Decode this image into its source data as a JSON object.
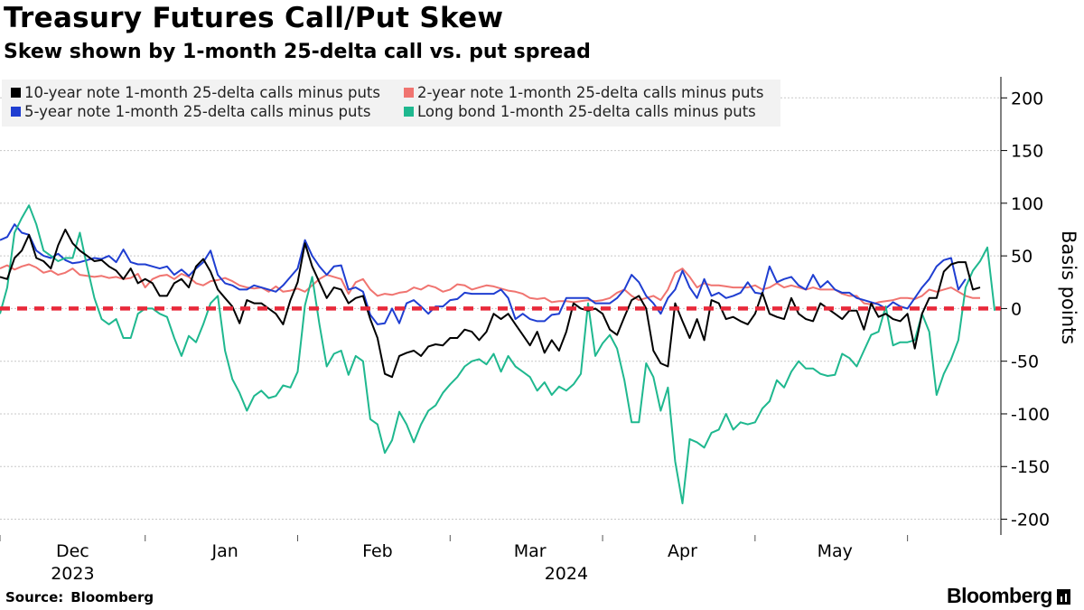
{
  "chart_data": {
    "type": "line",
    "title": "Treasury Futures Call/Put Skew",
    "subtitle": "Skew shown by 1-month 25-delta call vs. put spread",
    "ylabel": "Basis points",
    "ylim": [
      -215,
      220
    ],
    "yticks": [
      200,
      150,
      100,
      50,
      0,
      -50,
      -100,
      -150,
      -200
    ],
    "grid": true,
    "legend_position": "top-left",
    "zero_line_color": "#e8293a",
    "x_month_labels": [
      {
        "label": "Dec",
        "index": 10
      },
      {
        "label": "Jan",
        "index": 31
      },
      {
        "label": "Feb",
        "index": 52
      },
      {
        "label": "Mar",
        "index": 73
      },
      {
        "label": "Apr",
        "index": 94
      },
      {
        "label": "May",
        "index": 115
      }
    ],
    "x_year_labels": [
      {
        "label": "2023",
        "index": 10
      },
      {
        "label": "2024",
        "index": 78
      }
    ],
    "x_tick_indices": [
      0,
      20,
      41,
      62,
      83,
      104,
      125
    ],
    "series": [
      {
        "name": "2-year note 1-month 25-delta calls minus puts",
        "color": "#f07470",
        "values": [
          38,
          41,
          37,
          40,
          42,
          39,
          34,
          36,
          32,
          34,
          38,
          32,
          31,
          30,
          31,
          29,
          30,
          28,
          29,
          33,
          20,
          28,
          31,
          32,
          28,
          33,
          30,
          24,
          22,
          26,
          27,
          29,
          26,
          22,
          20,
          19,
          20,
          16,
          21,
          16,
          17,
          19,
          16,
          22,
          28,
          32,
          30,
          28,
          14,
          25,
          28,
          18,
          12,
          14,
          13,
          15,
          16,
          20,
          18,
          22,
          20,
          16,
          18,
          23,
          22,
          18,
          20,
          22,
          21,
          19,
          17,
          16,
          14,
          10,
          9,
          10,
          6,
          7,
          7,
          6,
          7,
          8,
          7,
          8,
          10,
          15,
          18,
          12,
          8,
          10,
          12,
          8,
          18,
          34,
          38,
          30,
          20,
          24,
          22,
          22,
          21,
          20,
          20,
          20,
          22,
          18,
          20,
          24,
          20,
          22,
          20,
          18,
          20,
          18,
          18,
          18,
          14,
          12,
          12,
          5,
          4,
          6,
          7,
          8,
          10,
          10,
          9,
          12,
          18,
          16,
          18,
          20,
          16,
          12,
          10,
          10
        ]
      },
      {
        "name": "5-year note 1-month 25-delta calls minus puts",
        "color": "#1f3ed1",
        "values": [
          65,
          68,
          80,
          72,
          70,
          55,
          50,
          48,
          52,
          46,
          43,
          44,
          46,
          48,
          47,
          50,
          44,
          56,
          44,
          42,
          42,
          40,
          38,
          40,
          32,
          37,
          31,
          38,
          44,
          55,
          32,
          24,
          22,
          18,
          18,
          22,
          20,
          18,
          16,
          22,
          30,
          38,
          65,
          50,
          40,
          32,
          40,
          41,
          18,
          20,
          16,
          -6,
          -15,
          -14,
          0,
          -14,
          5,
          8,
          2,
          -5,
          2,
          2,
          8,
          9,
          15,
          14,
          14,
          14,
          14,
          18,
          10,
          -10,
          -5,
          -10,
          -12,
          -12,
          -6,
          -5,
          10,
          10,
          10,
          10,
          5,
          5,
          5,
          10,
          18,
          32,
          25,
          12,
          5,
          -5,
          10,
          18,
          36,
          20,
          10,
          28,
          12,
          15,
          10,
          12,
          15,
          25,
          15,
          14,
          40,
          25,
          28,
          30,
          22,
          18,
          32,
          20,
          26,
          18,
          15,
          15,
          10,
          8,
          6,
          4,
          0,
          6,
          2,
          0,
          10,
          20,
          28,
          40,
          46,
          48,
          18,
          28
        ]
      },
      {
        "name": "Long bond 1-month 25-delta calls minus puts",
        "color": "#1fb88f",
        "values": [
          -5,
          20,
          72,
          86,
          98,
          80,
          55,
          50,
          45,
          48,
          48,
          72,
          40,
          10,
          -10,
          -15,
          -10,
          -28,
          -28,
          -5,
          0,
          0,
          -5,
          -8,
          -28,
          -45,
          -26,
          -32,
          -15,
          5,
          12,
          -40,
          -67,
          -80,
          -97,
          -83,
          -78,
          -85,
          -83,
          -73,
          -75,
          -60,
          3,
          30,
          -15,
          -55,
          -43,
          -40,
          -63,
          -45,
          -50,
          -105,
          -110,
          -137,
          -125,
          -98,
          -110,
          -127,
          -110,
          -97,
          -92,
          -80,
          -72,
          -65,
          -55,
          -50,
          -48,
          -53,
          -43,
          -60,
          -45,
          -55,
          -60,
          -65,
          -78,
          -70,
          -82,
          -74,
          -78,
          -72,
          -62,
          5,
          -45,
          -33,
          -25,
          -38,
          -68,
          -108,
          -108,
          -52,
          -65,
          -97,
          -75,
          -145,
          -185,
          -124,
          -127,
          -132,
          -118,
          -115,
          -100,
          -115,
          -108,
          -110,
          -108,
          -95,
          -88,
          -68,
          -75,
          -60,
          -50,
          -57,
          -57,
          -62,
          -64,
          -63,
          -43,
          -47,
          -55,
          -40,
          -25,
          -22,
          2,
          -35,
          -32,
          -32,
          -30,
          -5,
          -22,
          -82,
          -62,
          -48,
          -30,
          20,
          36,
          45,
          58,
          -2
        ]
      },
      {
        "name": "10-year note 1-month 25-delta calls minus puts",
        "color": "#000000",
        "values": [
          30,
          28,
          48,
          55,
          70,
          48,
          45,
          38,
          60,
          75,
          62,
          55,
          50,
          45,
          46,
          40,
          36,
          28,
          38,
          24,
          28,
          24,
          12,
          12,
          24,
          28,
          20,
          40,
          47,
          35,
          18,
          10,
          2,
          -14,
          8,
          5,
          5,
          0,
          -5,
          -15,
          8,
          25,
          62,
          40,
          25,
          10,
          20,
          18,
          5,
          10,
          12,
          -10,
          -28,
          -62,
          -65,
          -45,
          -42,
          -40,
          -45,
          -36,
          -34,
          -35,
          -28,
          -28,
          -20,
          -22,
          -30,
          -22,
          -5,
          -10,
          -5,
          -15,
          -25,
          -35,
          -22,
          -42,
          -30,
          -40,
          -22,
          5,
          0,
          -2,
          0,
          -5,
          -20,
          -25,
          -8,
          8,
          12,
          0,
          -40,
          -52,
          -55,
          5,
          -12,
          -28,
          -10,
          -30,
          8,
          5,
          -10,
          -8,
          -12,
          -15,
          -5,
          15,
          -5,
          -8,
          -10,
          10,
          -5,
          -10,
          -12,
          5,
          0,
          -5,
          -10,
          -2,
          -2,
          -20,
          5,
          -8,
          -5,
          -10,
          -12,
          -5,
          -38,
          -5,
          10,
          10,
          35,
          42,
          44,
          44,
          18,
          20
        ]
      }
    ],
    "legend_order": [
      3,
      0,
      1,
      2
    ]
  },
  "footer": {
    "source_label": "Source:",
    "source_value": "Bloomberg",
    "brand": "Bloomberg"
  }
}
